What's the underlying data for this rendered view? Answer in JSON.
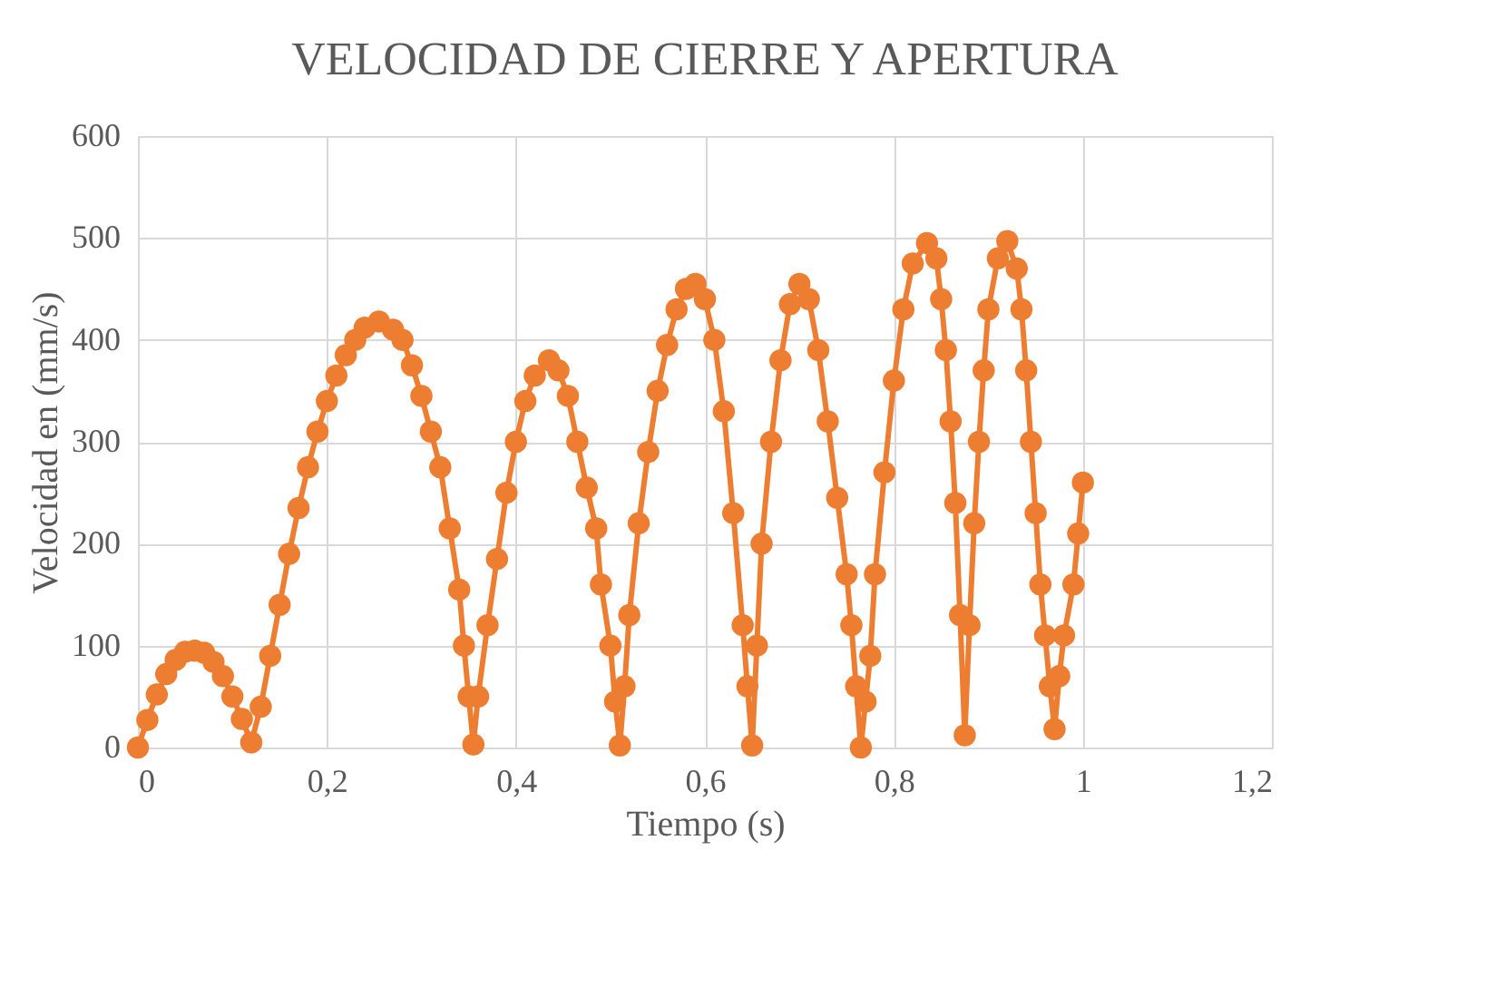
{
  "chart_data": {
    "type": "line",
    "title": "VELOCIDAD DE CIERRE Y APERTURA",
    "xlabel": "Tiempo (s)",
    "ylabel": "Velocidad en (mm/s)",
    "x": [
      0,
      0.01,
      0.02,
      0.03,
      0.04,
      0.05,
      0.06,
      0.07,
      0.08,
      0.09,
      0.1,
      0.11,
      0.12,
      0.13,
      0.14,
      0.15,
      0.16,
      0.17,
      0.18,
      0.19,
      0.2,
      0.21,
      0.22,
      0.23,
      0.24,
      0.255,
      0.27,
      0.28,
      0.29,
      0.3,
      0.31,
      0.32,
      0.33,
      0.34,
      0.345,
      0.35,
      0.355,
      0.36,
      0.37,
      0.38,
      0.39,
      0.4,
      0.41,
      0.42,
      0.435,
      0.445,
      0.455,
      0.465,
      0.475,
      0.485,
      0.49,
      0.5,
      0.505,
      0.51,
      0.515,
      0.52,
      0.53,
      0.54,
      0.55,
      0.56,
      0.57,
      0.58,
      0.59,
      0.6,
      0.61,
      0.62,
      0.63,
      0.64,
      0.645,
      0.65,
      0.655,
      0.66,
      0.67,
      0.68,
      0.69,
      0.7,
      0.71,
      0.72,
      0.73,
      0.74,
      0.75,
      0.755,
      0.76,
      0.765,
      0.77,
      0.775,
      0.78,
      0.79,
      0.8,
      0.81,
      0.82,
      0.835,
      0.845,
      0.85,
      0.855,
      0.86,
      0.865,
      0.87,
      0.875,
      0.88,
      0.885,
      0.89,
      0.895,
      0.9,
      0.91,
      0.92,
      0.93,
      0.935,
      0.94,
      0.945,
      0.95,
      0.955,
      0.96,
      0.965,
      0.97,
      0.975,
      0.98,
      0.99,
      0.995,
      1.0
    ],
    "series": [
      {
        "color": "#ed7d31",
        "values": [
          0,
          27,
          52,
          72,
          86,
          94,
          95,
          93,
          84,
          70,
          50,
          28,
          5,
          40,
          90,
          140,
          190,
          235,
          275,
          310,
          340,
          365,
          385,
          400,
          412,
          418,
          410,
          400,
          375,
          345,
          310,
          275,
          215,
          155,
          100,
          50,
          3,
          50,
          120,
          185,
          250,
          300,
          340,
          365,
          380,
          370,
          345,
          300,
          255,
          215,
          160,
          100,
          45,
          2,
          60,
          130,
          220,
          290,
          350,
          395,
          430,
          450,
          455,
          440,
          400,
          330,
          230,
          120,
          60,
          2,
          100,
          200,
          300,
          380,
          435,
          455,
          440,
          390,
          320,
          245,
          170,
          120,
          60,
          0,
          45,
          90,
          170,
          270,
          360,
          430,
          475,
          495,
          480,
          440,
          390,
          320,
          240,
          130,
          12,
          120,
          220,
          300,
          370,
          430,
          480,
          497,
          470,
          430,
          370,
          300,
          230,
          160,
          110,
          60,
          18,
          70,
          110,
          160,
          210,
          260
        ]
      }
    ],
    "xlim": [
      0,
      1.2
    ],
    "xticks": [
      0,
      {
        "value": 0.2,
        "label": "0,2"
      },
      {
        "value": 0.4,
        "label": "0,4"
      },
      {
        "value": 0.6,
        "label": "0,6"
      },
      {
        "value": 0.8,
        "label": "0,8"
      },
      1,
      {
        "value": 1.2,
        "label": "1,2"
      }
    ],
    "ylim": [
      0,
      600
    ],
    "yticks": [
      0,
      100,
      200,
      300,
      400,
      500,
      600
    ],
    "grid": true,
    "marker": "circle",
    "line_style": "solid"
  }
}
